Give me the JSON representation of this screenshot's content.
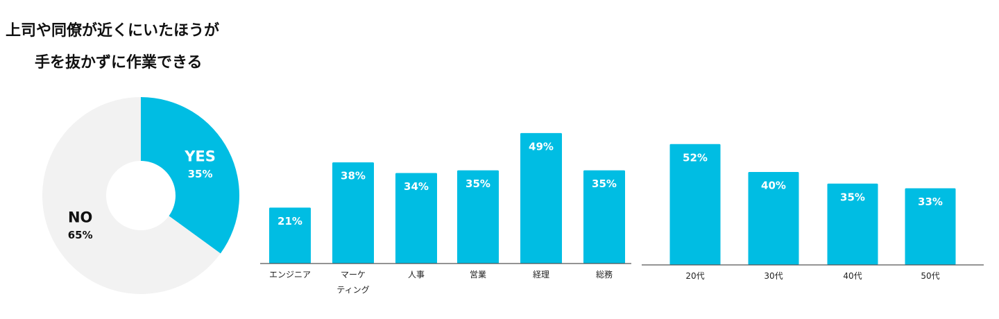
{
  "title": [
    "上司や同僚が近くにいたほうが",
    "手を抜かずに作業できる"
  ],
  "chart_data": [
    {
      "type": "pie",
      "categories": [
        "YES",
        "NO"
      ],
      "values": [
        35,
        65
      ],
      "value_labels": [
        "35%",
        "65%"
      ],
      "colors": [
        "#00bde3",
        "#f2f2f2"
      ]
    },
    {
      "type": "bar",
      "categories": [
        "エンジニア",
        "マーケ\nティング",
        "人事",
        "営業",
        "経理",
        "総務"
      ],
      "values": [
        21,
        38,
        34,
        35,
        49,
        35
      ],
      "value_labels": [
        "21%",
        "38%",
        "34%",
        "35%",
        "49%",
        "35%"
      ],
      "color": "#00bde3"
    },
    {
      "type": "bar",
      "categories": [
        "20代",
        "30代",
        "40代",
        "50代"
      ],
      "values": [
        52,
        40,
        35,
        33
      ],
      "value_labels": [
        "52%",
        "40%",
        "35%",
        "33%"
      ],
      "color": "#00bde3"
    }
  ]
}
